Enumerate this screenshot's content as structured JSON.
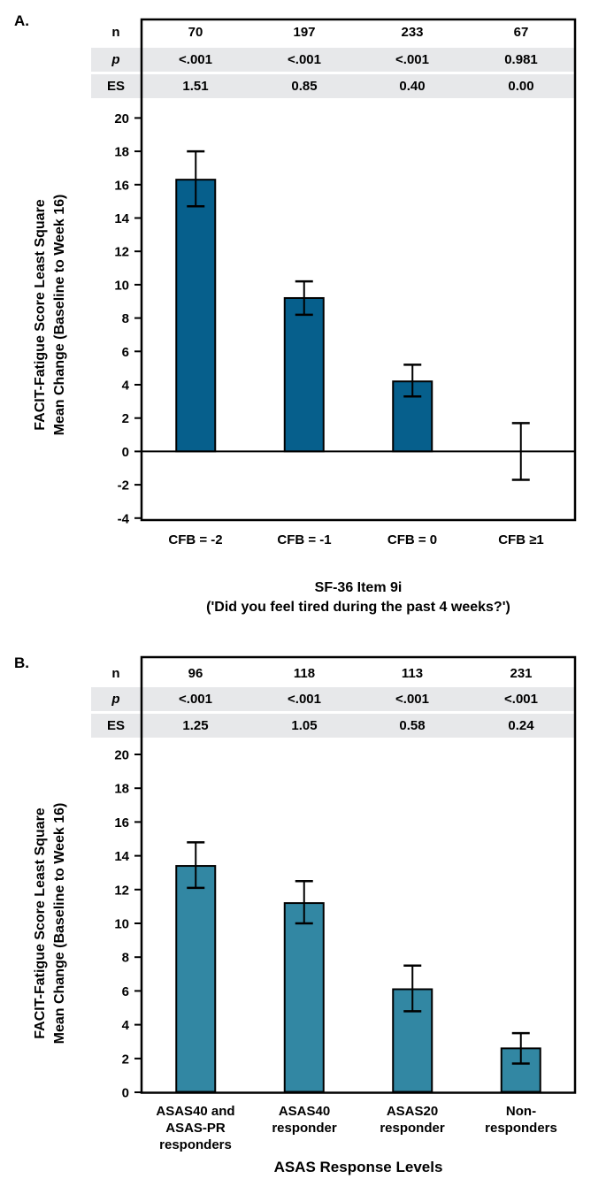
{
  "chart_data": [
    {
      "type": "bar",
      "panel_label": "A.",
      "stats": [
        {
          "label": "n",
          "values": [
            "70",
            "197",
            "233",
            "67"
          ]
        },
        {
          "label": "p",
          "values": [
            "<.001",
            "<.001",
            "<.001",
            "0.981"
          ]
        },
        {
          "label": "ES",
          "values": [
            "1.51",
            "0.85",
            "0.40",
            "0.00"
          ]
        }
      ],
      "categories": [
        [
          "CFB = -2"
        ],
        [
          "CFB = -1"
        ],
        [
          "CFB = 0"
        ],
        [
          "CFB ≥1"
        ]
      ],
      "values": [
        16.3,
        9.2,
        4.2,
        0.0
      ],
      "error_low": [
        14.7,
        8.2,
        3.3,
        -1.7
      ],
      "error_high": [
        18.0,
        10.2,
        5.2,
        1.7
      ],
      "ylabel_lines": [
        "FACIT-Fatigue Score Least Square",
        "Mean Change (Baseline to Week 16)"
      ],
      "xlabel_lines": [
        "SF-36 Item 9i",
        "('Did you feel tired during the past 4 weeks?')"
      ],
      "ylim": [
        -4,
        20
      ],
      "ytick_step": 2,
      "bar_color": "#065F8C",
      "error_color": "#000000",
      "shade_color": "#E7E8EA",
      "legend": "none",
      "grid": "off"
    },
    {
      "type": "bar",
      "panel_label": "B.",
      "stats": [
        {
          "label": "n",
          "values": [
            "96",
            "118",
            "113",
            "231"
          ]
        },
        {
          "label": "p",
          "values": [
            "<.001",
            "<.001",
            "<.001",
            "<.001"
          ]
        },
        {
          "label": "ES",
          "values": [
            "1.25",
            "1.05",
            "0.58",
            "0.24"
          ]
        }
      ],
      "categories": [
        [
          "ASAS40 and",
          "ASAS-PR",
          "responders"
        ],
        [
          "ASAS40",
          "responder"
        ],
        [
          "ASAS20",
          "responder"
        ],
        [
          "Non-",
          "responders"
        ]
      ],
      "values": [
        13.4,
        11.2,
        6.1,
        2.6
      ],
      "error_low": [
        12.1,
        10.0,
        4.8,
        1.7
      ],
      "error_high": [
        14.8,
        12.5,
        7.5,
        3.5
      ],
      "ylabel_lines": [
        "FACIT-Fatigue Score Least Square",
        "Mean Change (Baseline to Week 16)"
      ],
      "xlabel_lines": [
        "ASAS Response Levels"
      ],
      "ylim": [
        0,
        20
      ],
      "ytick_step": 2,
      "bar_color": "#3287A3",
      "error_color": "#000000",
      "shade_color": "#E7E8EA",
      "legend": "none",
      "grid": "off"
    }
  ]
}
